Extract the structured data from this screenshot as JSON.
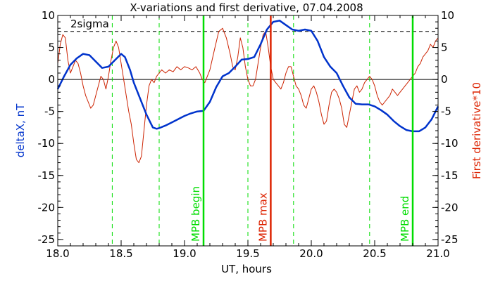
{
  "chart_data": {
    "type": "line",
    "title": "X-variations and first derivative, 07.04.2008",
    "xlabel": "UT, hours",
    "ylabel_left": "deltaX, nT",
    "ylabel_right": "First derivative*10",
    "xlim": [
      18.0,
      21.0
    ],
    "ylim": [
      -26,
      10
    ],
    "xticks": [
      18.0,
      18.5,
      19.0,
      19.5,
      20.0,
      20.5,
      21.0
    ],
    "xtick_labels": [
      "18.0",
      "18.5",
      "19.0",
      "19.5",
      "20.0",
      "20.5",
      "21.0"
    ],
    "yticks": [
      10,
      5,
      0,
      -5,
      -10,
      -15,
      -20,
      -25
    ],
    "ytick_labels": [
      "10",
      "5",
      "0",
      "-5",
      "-10",
      "-15",
      "-20",
      "-25"
    ],
    "colors": {
      "deltaX": "#0033cc",
      "derivative": "#cc2200",
      "mpb_edges": "#00dd00",
      "mpb_max": "#dd2200",
      "axis_left": "#0033cc",
      "axis_right": "#dd2200"
    },
    "threshold": {
      "label": "2sigma",
      "value": 7.5
    },
    "zero_line": 0,
    "dashed_lines_x": [
      18.43,
      18.8,
      19.5,
      19.86,
      20.46
    ],
    "markers": [
      {
        "x": 19.15,
        "label": "MPB begin",
        "kind": "begin"
      },
      {
        "x": 19.68,
        "label": "MPB max",
        "kind": "max"
      },
      {
        "x": 20.8,
        "label": "MPB end",
        "kind": "end"
      }
    ],
    "series": [
      {
        "key": "deltaX",
        "x": [
          18.0,
          18.05,
          18.1,
          18.15,
          18.2,
          18.25,
          18.3,
          18.35,
          18.4,
          18.45,
          18.5,
          18.53,
          18.57,
          18.6,
          18.65,
          18.7,
          18.75,
          18.78,
          18.8,
          18.85,
          18.9,
          18.95,
          19.0,
          19.05,
          19.1,
          19.15,
          19.2,
          19.25,
          19.3,
          19.35,
          19.4,
          19.45,
          19.5,
          19.55,
          19.6,
          19.65,
          19.7,
          19.75,
          19.8,
          19.85,
          19.9,
          19.95,
          20.0,
          20.05,
          20.1,
          20.15,
          20.2,
          20.25,
          20.3,
          20.35,
          20.4,
          20.45,
          20.5,
          20.55,
          20.6,
          20.65,
          20.7,
          20.75,
          20.8,
          20.85,
          20.9,
          20.95,
          21.0
        ],
        "values": [
          -1.5,
          0.5,
          2.3,
          3.3,
          4.0,
          3.8,
          2.8,
          1.8,
          2.0,
          3.0,
          4.0,
          3.5,
          1.5,
          -0.5,
          -3.0,
          -5.5,
          -7.5,
          -7.7,
          -7.6,
          -7.2,
          -6.7,
          -6.2,
          -5.7,
          -5.3,
          -5.0,
          -4.9,
          -3.5,
          -1.2,
          0.5,
          1.0,
          2.0,
          3.1,
          3.2,
          3.5,
          5.5,
          7.8,
          9.0,
          9.2,
          8.5,
          7.8,
          7.6,
          7.8,
          7.6,
          6.0,
          3.5,
          2.0,
          1.0,
          -1.0,
          -2.8,
          -3.8,
          -3.9,
          -3.9,
          -4.2,
          -4.8,
          -5.5,
          -6.5,
          -7.3,
          -7.9,
          -8.1,
          -8.1,
          -7.5,
          -6.2,
          -4.2
        ]
      },
      {
        "key": "derivative",
        "x": [
          18.0,
          18.02,
          18.04,
          18.06,
          18.08,
          18.1,
          18.12,
          18.14,
          18.16,
          18.18,
          18.2,
          18.22,
          18.24,
          18.26,
          18.28,
          18.3,
          18.32,
          18.34,
          18.36,
          18.38,
          18.4,
          18.42,
          18.44,
          18.46,
          18.48,
          18.5,
          18.52,
          18.54,
          18.56,
          18.58,
          18.6,
          18.62,
          18.64,
          18.66,
          18.68,
          18.7,
          18.72,
          18.74,
          18.76,
          18.78,
          18.8,
          18.82,
          18.85,
          18.88,
          18.91,
          18.94,
          18.97,
          19.0,
          19.03,
          19.06,
          19.09,
          19.12,
          19.14,
          19.16,
          19.2,
          19.24,
          19.27,
          19.3,
          19.33,
          19.36,
          19.38,
          19.4,
          19.42,
          19.44,
          19.46,
          19.48,
          19.5,
          19.52,
          19.54,
          19.56,
          19.58,
          19.6,
          19.62,
          19.64,
          19.66,
          19.68,
          19.7,
          19.72,
          19.74,
          19.76,
          19.78,
          19.8,
          19.82,
          19.84,
          19.86,
          19.88,
          19.9,
          19.92,
          19.94,
          19.96,
          19.98,
          20.0,
          20.02,
          20.04,
          20.06,
          20.08,
          20.1,
          20.12,
          20.14,
          20.16,
          20.18,
          20.2,
          20.22,
          20.24,
          20.26,
          20.28,
          20.3,
          20.32,
          20.34,
          20.36,
          20.38,
          20.4,
          20.42,
          20.44,
          20.46,
          20.48,
          20.5,
          20.52,
          20.54,
          20.56,
          20.58,
          20.6,
          20.62,
          20.64,
          20.66,
          20.68,
          20.7,
          20.72,
          20.74,
          20.76,
          20.78,
          20.8,
          20.82,
          20.84,
          20.86,
          20.88,
          20.9,
          20.92,
          20.94,
          20.96,
          20.98,
          21.0
        ],
        "values": [
          2.5,
          5.5,
          7.0,
          6.5,
          3.0,
          1.0,
          2.0,
          3.0,
          2.5,
          1.0,
          -1.0,
          -2.5,
          -3.5,
          -4.5,
          -4.0,
          -2.5,
          -1.0,
          0.5,
          0.0,
          -1.5,
          0.5,
          3.0,
          5.0,
          6.0,
          5.0,
          2.5,
          0.0,
          -2.5,
          -5.0,
          -7.0,
          -10.0,
          -12.5,
          -13.0,
          -12.0,
          -8.0,
          -4.0,
          -1.0,
          0.0,
          -0.5,
          0.5,
          1.0,
          1.5,
          1.0,
          1.5,
          1.2,
          2.0,
          1.5,
          2.0,
          1.8,
          1.5,
          2.0,
          1.0,
          0.0,
          -0.5,
          1.5,
          5.0,
          7.5,
          8.0,
          6.5,
          4.0,
          2.0,
          1.5,
          3.5,
          6.5,
          5.0,
          2.0,
          0.0,
          -1.0,
          -1.0,
          0.0,
          2.5,
          5.0,
          7.0,
          7.5,
          5.0,
          2.0,
          0.0,
          -0.5,
          -1.0,
          -1.5,
          -0.5,
          1.0,
          2.0,
          2.0,
          0.5,
          -1.0,
          -1.5,
          -2.5,
          -4.0,
          -4.5,
          -3.0,
          -1.5,
          -1.0,
          -2.0,
          -3.5,
          -5.5,
          -7.0,
          -6.5,
          -4.0,
          -2.0,
          -1.5,
          -2.0,
          -3.0,
          -4.5,
          -7.0,
          -7.5,
          -5.5,
          -3.5,
          -1.5,
          -1.0,
          -2.0,
          -1.5,
          -0.5,
          0.0,
          0.5,
          0.0,
          -1.0,
          -2.5,
          -3.5,
          -4.0,
          -3.5,
          -3.0,
          -2.5,
          -1.5,
          -2.0,
          -2.5,
          -2.0,
          -1.5,
          -1.0,
          -0.5,
          0.0,
          0.5,
          1.0,
          2.0,
          2.5,
          3.5,
          4.0,
          4.5,
          5.5,
          5.0,
          6.0,
          6.5
        ]
      }
    ]
  }
}
